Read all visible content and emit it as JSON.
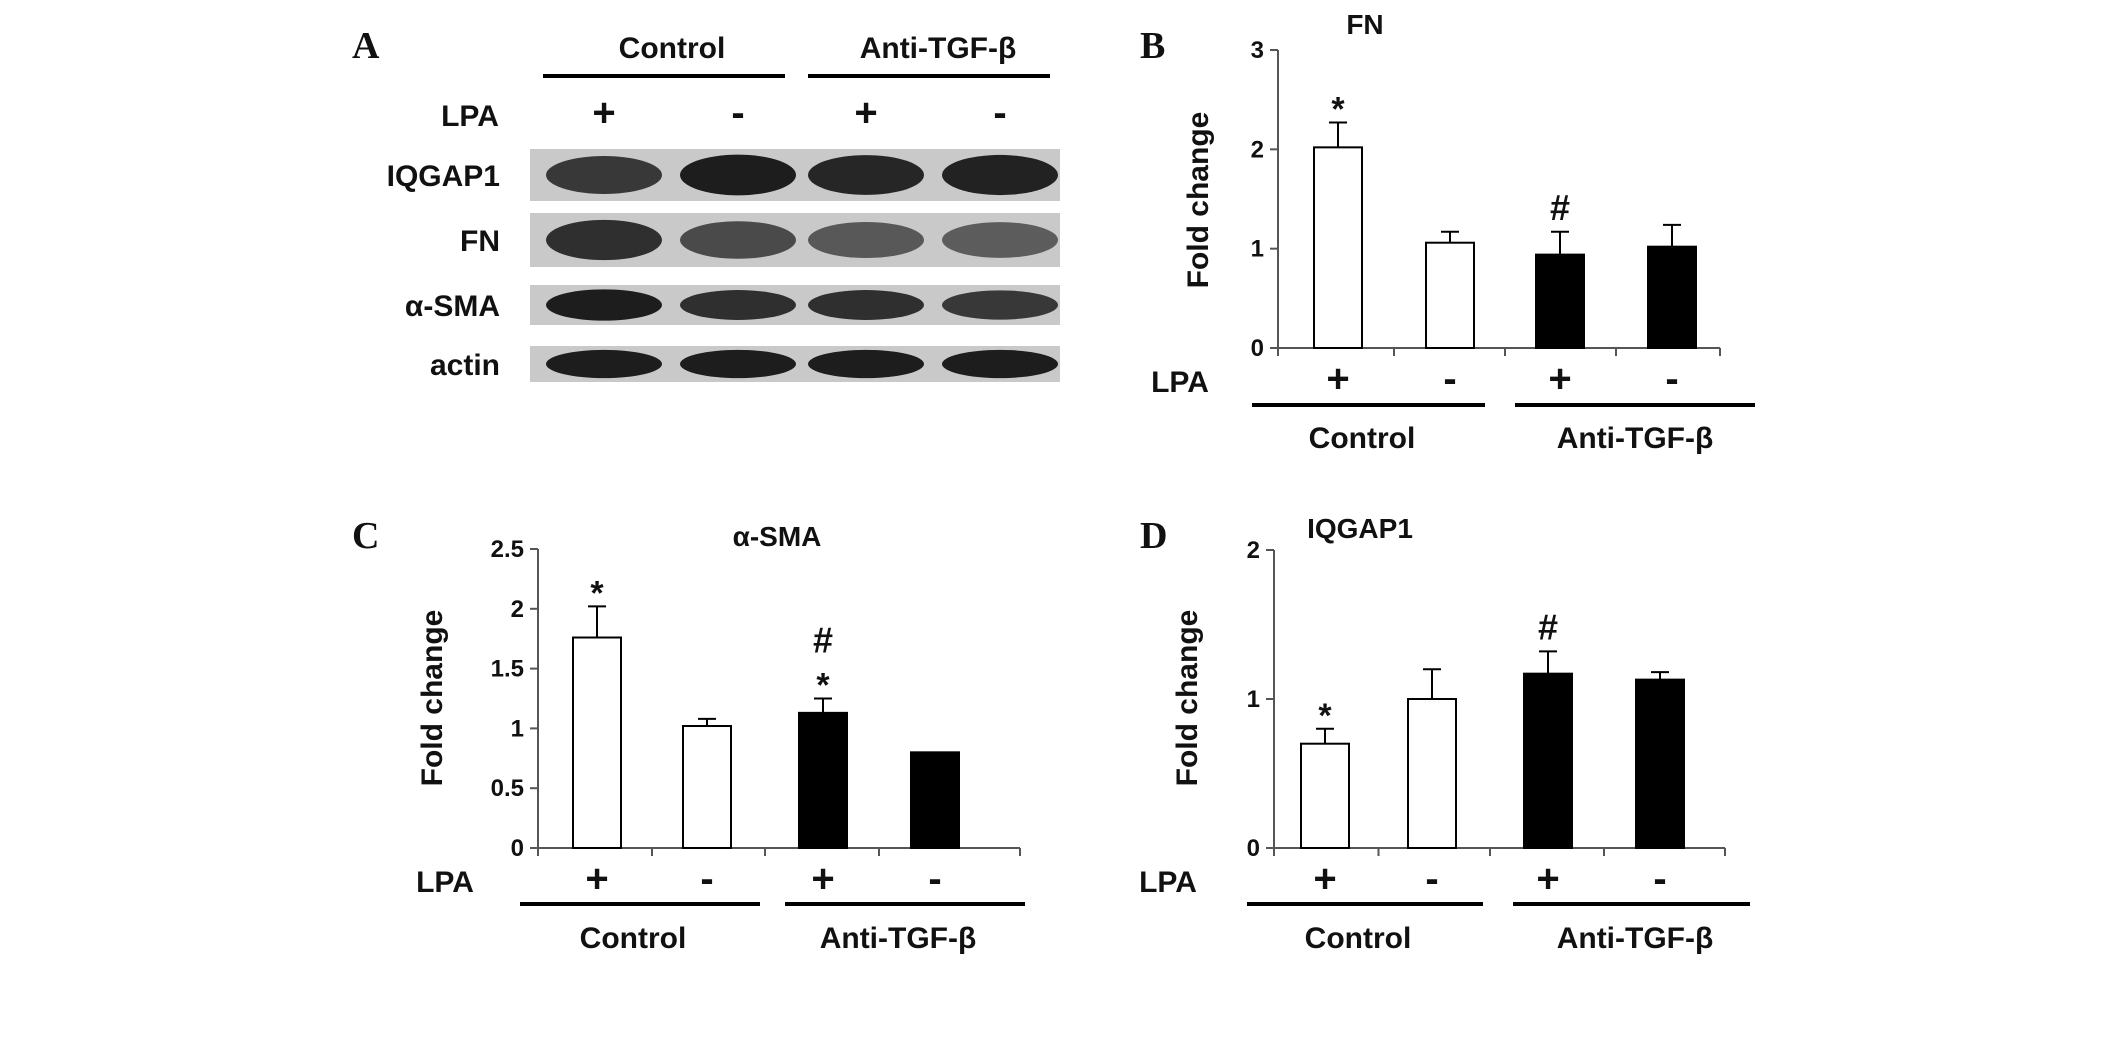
{
  "western_blot": {
    "panel_letter": "A",
    "group_labels": [
      "Control",
      "Anti-TGF-β"
    ],
    "condition_label": "LPA",
    "lanes": [
      "+",
      "-",
      "+",
      "-"
    ],
    "rows": [
      {
        "label": "IQGAP1",
        "intensities": [
          0.8,
          0.95,
          0.9,
          0.92
        ]
      },
      {
        "label": "FN",
        "intensities": [
          0.85,
          0.7,
          0.62,
          0.6
        ]
      },
      {
        "label": "α-SMA",
        "intensities": [
          0.95,
          0.85,
          0.85,
          0.8
        ]
      },
      {
        "label": "actin",
        "intensities": [
          0.95,
          0.95,
          0.95,
          0.95
        ]
      }
    ]
  },
  "chart_data": [
    {
      "type": "bar",
      "panel_letter": "B",
      "title": "FN",
      "ylabel": "Fold change",
      "ylim": [
        0,
        3
      ],
      "yticks": [
        "0",
        "1",
        "2",
        "3"
      ],
      "categories": [
        "+",
        "-",
        "+",
        "-"
      ],
      "condition_label": "LPA",
      "group_labels": [
        "Control",
        "Anti-TGF-β"
      ],
      "values": [
        2.02,
        1.06,
        0.94,
        1.02
      ],
      "errors": [
        0.25,
        0.11,
        0.23,
        0.22
      ],
      "fills": [
        "#ffffff",
        "#ffffff",
        "#000000",
        "#000000"
      ],
      "annotations": [
        [
          "*"
        ],
        [],
        [
          "#"
        ],
        []
      ]
    },
    {
      "type": "bar",
      "panel_letter": "C",
      "title": "α-SMA",
      "ylabel": "Fold change",
      "ylim": [
        0,
        2.5
      ],
      "yticks": [
        "0",
        "0.5",
        "1",
        "1.5",
        "2",
        "2.5"
      ],
      "categories": [
        "+",
        "-",
        "+",
        "-"
      ],
      "condition_label": "LPA",
      "group_labels": [
        "Control",
        "Anti-TGF-β"
      ],
      "values": [
        1.76,
        1.02,
        1.13,
        0.8
      ],
      "errors": [
        0.26,
        0.06,
        0.12,
        0.0
      ],
      "fills": [
        "#ffffff",
        "#ffffff",
        "#000000",
        "#000000"
      ],
      "annotations": [
        [
          "*"
        ],
        [],
        [
          "#",
          "*"
        ],
        []
      ]
    },
    {
      "type": "bar",
      "panel_letter": "D",
      "title": "IQGAP1",
      "ylabel": "Fold change",
      "ylim": [
        0,
        2
      ],
      "yticks": [
        "0",
        "1",
        "2"
      ],
      "categories": [
        "+",
        "-",
        "+",
        "-"
      ],
      "condition_label": "LPA",
      "group_labels": [
        "Control",
        "Anti-TGF-β"
      ],
      "values": [
        0.7,
        1.0,
        1.17,
        1.13
      ],
      "errors": [
        0.1,
        0.2,
        0.15,
        0.05
      ],
      "fills": [
        "#ffffff",
        "#ffffff",
        "#000000",
        "#000000"
      ],
      "annotations": [
        [
          "*"
        ],
        [],
        [
          "#"
        ],
        []
      ]
    }
  ]
}
